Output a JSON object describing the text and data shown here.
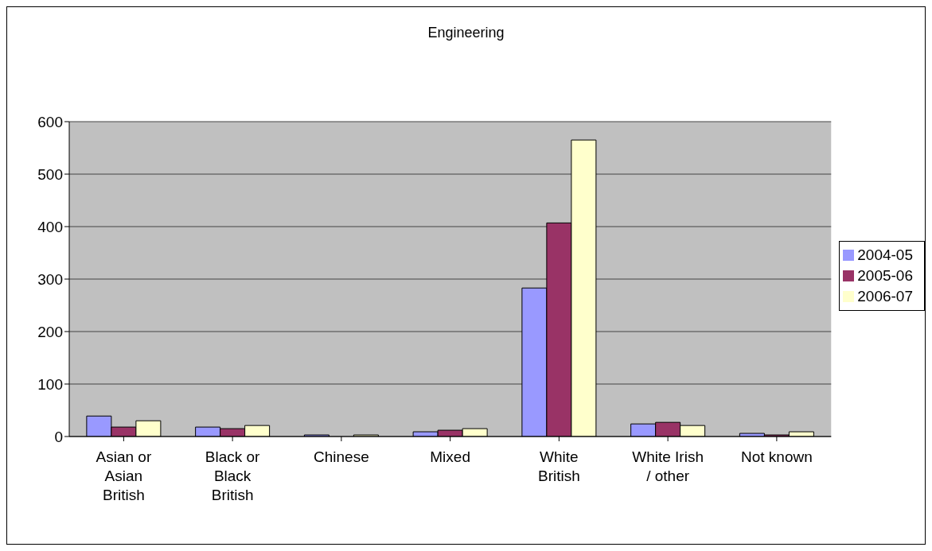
{
  "chart_data": {
    "type": "bar",
    "title": "Engineering",
    "categories": [
      "Asian or Asian British",
      "Black or Black British",
      "Chinese",
      "Mixed",
      "White British",
      "White Irish / other",
      "Not known"
    ],
    "series": [
      {
        "name": "2004-05",
        "color": "#9999ff",
        "values": [
          39,
          18,
          3,
          9,
          283,
          24,
          6
        ]
      },
      {
        "name": "2005-06",
        "color": "#993366",
        "values": [
          18,
          15,
          0,
          12,
          407,
          27,
          3
        ]
      },
      {
        "name": "2006-07",
        "color": "#ffffcc",
        "values": [
          30,
          21,
          3,
          15,
          565,
          21,
          9
        ]
      }
    ],
    "ylim": [
      0,
      600
    ],
    "yticks": [
      0,
      100,
      200,
      300,
      400,
      500,
      600
    ],
    "grid": "y",
    "legend": "right"
  }
}
